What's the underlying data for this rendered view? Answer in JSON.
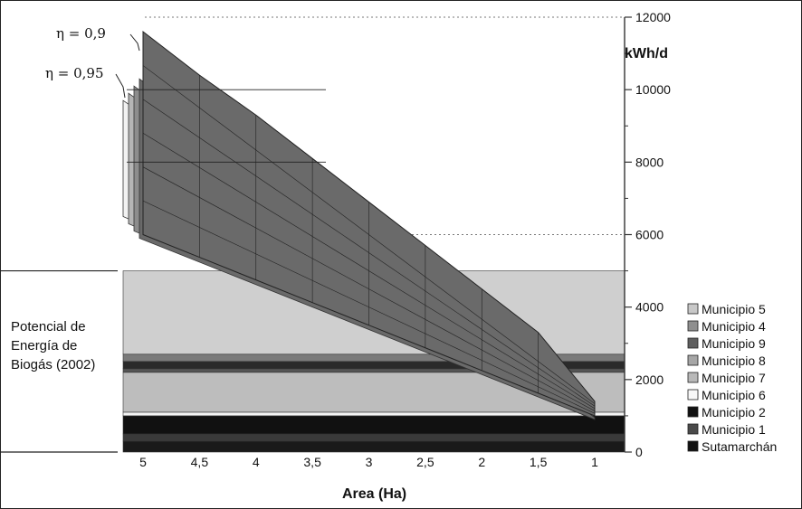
{
  "chart_data": {
    "type": "area",
    "title": "",
    "xlabel": "Area (Ha)",
    "ylabel": "kWh/d",
    "x_ticks": [
      "5",
      "4,5",
      "4",
      "3,5",
      "3",
      "2,5",
      "2",
      "1,5",
      "1"
    ],
    "y_ticks": [
      0,
      2000,
      4000,
      6000,
      8000,
      10000,
      12000
    ],
    "ylim": [
      0,
      12000
    ],
    "grid": "dotted horizontal at 2000, 4000, 6000, 12000",
    "potential_label": "Potencial de Energía de Biogás (2002)",
    "potential_lines": [
      "Potencial de",
      "Energía de",
      "Biogás (2002)"
    ],
    "potential_bands": [
      {
        "name": "Sutamarchán",
        "from": 0,
        "to": 300,
        "color": "#1a1a1a"
      },
      {
        "name": "Municipio 1",
        "from": 300,
        "to": 500,
        "color": "#3a3a3a"
      },
      {
        "name": "Municipio 2",
        "from": 500,
        "to": 1000,
        "color": "#111111"
      },
      {
        "name": "Municipio 6",
        "from": 1000,
        "to": 1100,
        "color": "#f4f4f4"
      },
      {
        "name": "Municipio 7",
        "from": 1100,
        "to": 2200,
        "color": "#bdbdbd"
      },
      {
        "name": "Municipio 8",
        "from": 2200,
        "to": 2300,
        "color": "#555555"
      },
      {
        "name": "Municipio 9",
        "from": 2300,
        "to": 2500,
        "color": "#2a2a2a"
      },
      {
        "name": "Municipio 4",
        "from": 2500,
        "to": 2700,
        "color": "#7a7a7a"
      },
      {
        "name": "Municipio 5",
        "from": 2700,
        "to": 5000,
        "color": "#cfcfcf"
      }
    ],
    "series": [
      {
        "name": "η = 0,9",
        "values": [
          11600,
          10400,
          9300,
          8100,
          6900,
          5700,
          4500,
          3300,
          1400
        ]
      },
      {
        "name": "η = 0,95",
        "values": [
          10300,
          9200,
          8200,
          7100,
          6000,
          5000,
          3900,
          2800,
          1100
        ]
      }
    ],
    "annotations": [
      "η = 0,9",
      "η = 0,95"
    ],
    "legend": {
      "placement": "right",
      "items": [
        {
          "label": "Municipio 5",
          "color": "#c8c8c8"
        },
        {
          "label": "Municipio 4",
          "color": "#8f8f8f"
        },
        {
          "label": "Municipio 9",
          "color": "#5e5e5e"
        },
        {
          "label": "Municipio 8",
          "color": "#a6a6a6"
        },
        {
          "label": "Municipio 7",
          "color": "#b8b8b8"
        },
        {
          "label": "Municipio 6",
          "color": "#f8f8f8"
        },
        {
          "label": "Municipio 2",
          "color": "#111111"
        },
        {
          "label": "Municipio 1",
          "color": "#4a4a4a"
        },
        {
          "label": "Sutamarchán",
          "color": "#111111"
        }
      ]
    },
    "surface_color": "#6a6a6a",
    "outline_color": "#222222"
  }
}
